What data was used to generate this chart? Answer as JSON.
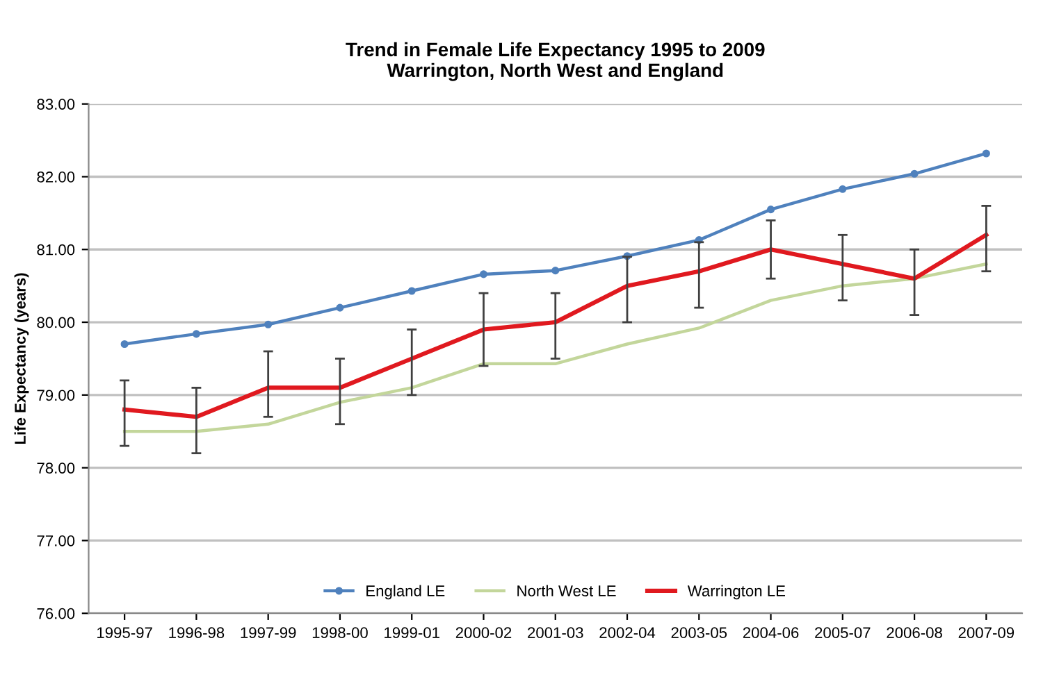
{
  "chart_data": {
    "type": "line",
    "title": "Trend in Female Life Expectancy 1995 to 2009\nWarrington, North West and England",
    "ylabel": "Life Expectancy (years)",
    "categories": [
      "1995-97",
      "1996-98",
      "1997-99",
      "1998-00",
      "1999-01",
      "2000-02",
      "2001-03",
      "2002-04",
      "2003-05",
      "2004-06",
      "2005-07",
      "2006-08",
      "2007-09"
    ],
    "series": [
      {
        "name": "England LE",
        "color": "#4f81bd",
        "marker": "circle",
        "values": [
          79.7,
          79.84,
          79.97,
          80.2,
          80.43,
          80.66,
          80.71,
          80.91,
          81.13,
          81.55,
          81.83,
          82.04,
          82.32
        ]
      },
      {
        "name": "North West LE",
        "color": "#c3d69b",
        "marker": "none",
        "values": [
          78.5,
          78.5,
          78.6,
          78.9,
          79.1,
          79.43,
          79.43,
          79.7,
          79.92,
          80.3,
          80.5,
          80.6,
          80.8
        ]
      },
      {
        "name": "Warrington LE",
        "color": "#e0191f",
        "marker": "none",
        "values": [
          78.8,
          78.7,
          79.1,
          79.1,
          79.5,
          79.9,
          80.0,
          80.5,
          80.7,
          81.0,
          80.8,
          80.6,
          81.2
        ],
        "errors": [
          [
            78.3,
            79.2
          ],
          [
            78.2,
            79.1
          ],
          [
            78.7,
            79.6
          ],
          [
            78.6,
            79.5
          ],
          [
            79.0,
            79.9
          ],
          [
            79.4,
            80.4
          ],
          [
            79.5,
            80.4
          ],
          [
            80.0,
            80.9
          ],
          [
            80.2,
            81.1
          ],
          [
            80.6,
            81.4
          ],
          [
            80.3,
            81.2
          ],
          [
            80.1,
            81.0
          ],
          [
            80.7,
            81.6
          ]
        ]
      }
    ],
    "ylim": [
      76,
      83
    ],
    "yticks": [
      {
        "value": 76,
        "label": "76.00"
      },
      {
        "value": 77,
        "label": "77.00"
      },
      {
        "value": 78,
        "label": "78.00"
      },
      {
        "value": 79,
        "label": "79.00"
      },
      {
        "value": 80,
        "label": "80.00"
      },
      {
        "value": 81,
        "label": "81.00"
      },
      {
        "value": 82,
        "label": "82.00"
      },
      {
        "value": 83,
        "label": "83.00"
      }
    ],
    "grid": "y",
    "legend": "bottom"
  }
}
